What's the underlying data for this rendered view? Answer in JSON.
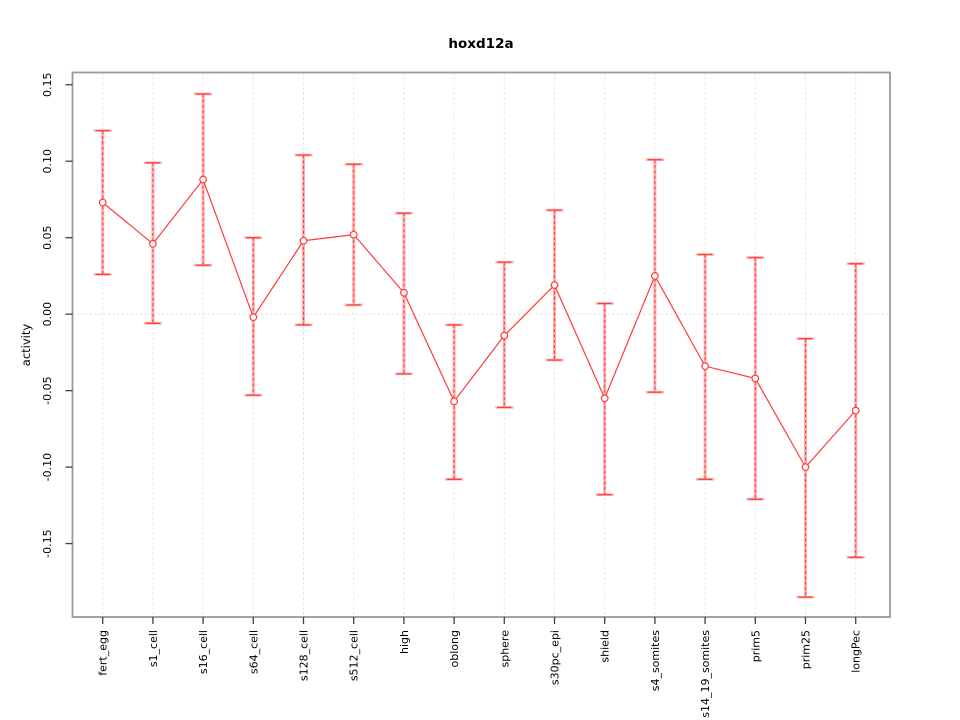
{
  "page": {
    "background": "#ffffff"
  },
  "chart_data": {
    "type": "line",
    "title": "hoxd12a",
    "ylabel": "activity",
    "xlabel": "",
    "legend": "none",
    "grid": {
      "vertical_dashed_per_category": true,
      "zero_dotted_line": true,
      "horizontal_gridlines": false
    },
    "categories": [
      "fert_egg",
      "s1_cell",
      "s16_cell",
      "s64_cell",
      "s128_cell",
      "s512_cell",
      "high",
      "oblong",
      "sphere",
      "s30pc_epi",
      "shield",
      "s4_somites",
      "s14_19_somites",
      "prim5",
      "prim25",
      "longPec"
    ],
    "series": [
      {
        "name": "activity",
        "values": [
          0.073,
          0.046,
          0.088,
          -0.002,
          0.048,
          0.052,
          0.014,
          -0.057,
          -0.014,
          0.019,
          -0.055,
          0.025,
          -0.034,
          -0.042,
          -0.1,
          -0.063
        ],
        "lower": [
          0.026,
          -0.006,
          0.032,
          -0.053,
          -0.007,
          0.006,
          -0.039,
          -0.108,
          -0.061,
          -0.03,
          -0.118,
          -0.051,
          -0.108,
          -0.121,
          -0.185,
          -0.159
        ],
        "upper": [
          0.12,
          0.099,
          0.144,
          0.05,
          0.104,
          0.098,
          0.066,
          -0.007,
          0.034,
          0.068,
          0.007,
          0.101,
          0.039,
          0.037,
          -0.016,
          0.033
        ]
      }
    ],
    "ylim": [
      -0.198,
      0.158
    ],
    "yticks": [
      -0.15,
      -0.1,
      -0.05,
      0.0,
      0.05,
      0.1,
      0.15
    ],
    "ytick_labels": [
      "-0.15",
      "-0.10",
      "-0.05",
      "0.00",
      "0.05",
      "0.10",
      "0.15"
    ],
    "colors": {
      "line": "#ff3b3b",
      "point_stroke": "#ff3b3b",
      "point_fill": "#ffffff",
      "errorbar_outer": "#ffadad",
      "errorbar_inner": "#ff3b3b",
      "grid": "#dedede",
      "zero_line": "#d6d6d6",
      "box": "#9a9a9a",
      "tick": "#404040",
      "text": "#000000"
    }
  }
}
